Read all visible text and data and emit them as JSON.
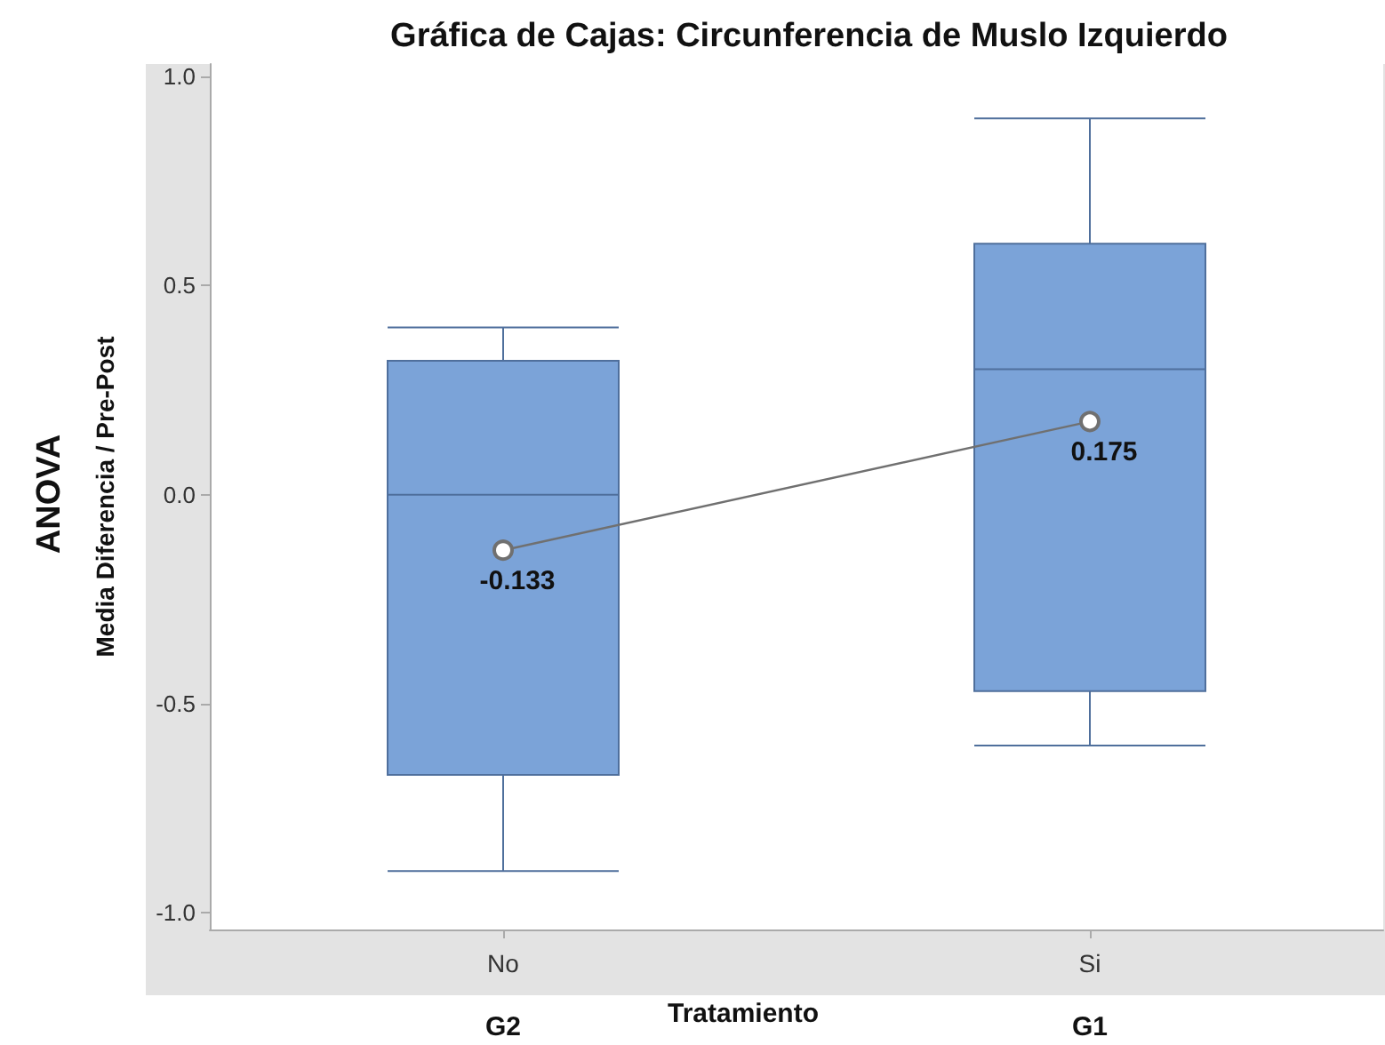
{
  "chart_data": {
    "type": "box",
    "title": "Gráfica de Cajas: Circunferencia de Muslo Izquierdo",
    "xlabel": "Tratamiento",
    "ylabel": "Media Diferencia / Pre-Post",
    "annotations": [
      "ANOVA",
      "G2",
      "G1"
    ],
    "categories": [
      "No",
      "Si"
    ],
    "series": [
      {
        "color": "#7ba3d8",
        "boxes": [
          {
            "low": -0.9,
            "q1": -0.67,
            "median": 0,
            "q3": 0.32,
            "high": 0.4
          },
          {
            "low": -0.6,
            "q1": -0.47,
            "median": 0.3,
            "q3": 0.6,
            "high": 0.9
          }
        ]
      },
      {
        "type": "line",
        "color": "#707070",
        "values": [
          -0.133,
          0.175
        ],
        "value_labels": [
          "-0.133",
          "0.175"
        ],
        "marker": "circle"
      }
    ],
    "ylim": [
      -1.04,
      1.03
    ],
    "yticks": [
      {
        "value": -1,
        "label": "-1.0"
      },
      {
        "value": -0.5,
        "label": "-0.5"
      },
      {
        "value": 0,
        "label": "0.0"
      },
      {
        "value": 0.5,
        "label": "0.5"
      },
      {
        "value": 1,
        "label": "1.0"
      }
    ],
    "grid": false
  }
}
